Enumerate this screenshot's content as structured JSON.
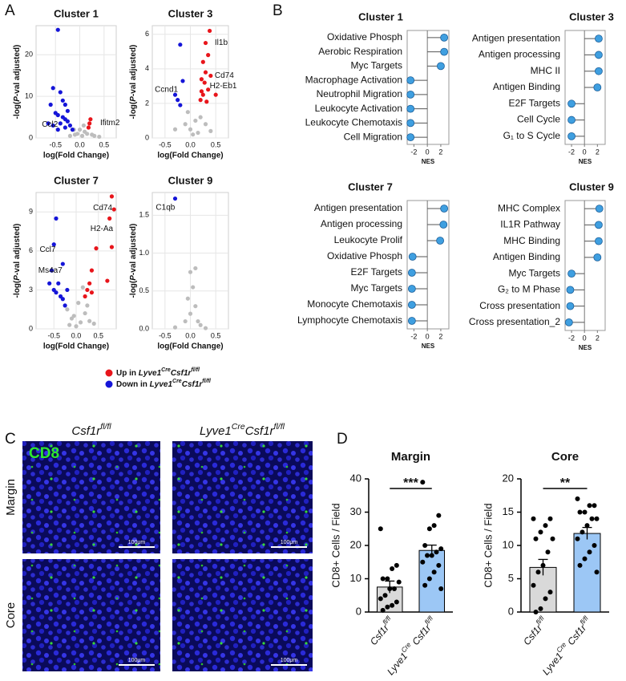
{
  "panels": [
    "A",
    "B",
    "C",
    "D"
  ],
  "legend": [
    {
      "color": "#e8151b",
      "parts": [
        {
          "text": "Up in "
        },
        {
          "text": "Lyve1",
          "italic": true
        },
        {
          "text": "Cre",
          "italic": true,
          "sup": true
        },
        {
          "text": "Csf1r",
          "italic": true
        },
        {
          "text": "fl/fl",
          "italic": true,
          "sup": true
        }
      ]
    },
    {
      "color": "#1515d8",
      "parts": [
        {
          "text": "Down in "
        },
        {
          "text": "Lyve1",
          "italic": true
        },
        {
          "text": "Cre",
          "italic": true,
          "sup": true
        },
        {
          "text": "Csf1r",
          "italic": true
        },
        {
          "text": "fl/fl",
          "italic": true,
          "sup": true
        }
      ]
    }
  ],
  "micrographs": {
    "columns": [
      [
        {
          "text": "Csf1r",
          "italic": true
        },
        {
          "text": "fl/fl",
          "italic": true,
          "sup": true
        }
      ],
      [
        {
          "text": "Lyve1",
          "italic": true
        },
        {
          "text": "Cre",
          "italic": true,
          "sup": true
        },
        {
          "text": "Csf1r",
          "italic": true
        },
        {
          "text": "fl/fl",
          "italic": true,
          "sup": true
        }
      ]
    ],
    "rows": [
      "Margin",
      "Core"
    ],
    "stain": "CD8",
    "scale_bars": [
      "100μm",
      "100μm",
      "100μm",
      "100μm"
    ]
  },
  "chart_data": [
    {
      "type": "scatter",
      "title": "Cluster 1",
      "xlabel": "log(Fold Change)",
      "ylabel": [
        {
          "text": "-log("
        },
        {
          "text": "P",
          "italic": true
        },
        {
          "text": "-val adjusted)"
        }
      ],
      "xlim": [
        -0.9,
        0.75
      ],
      "ylim": [
        0,
        27
      ],
      "xticks": [
        -0.5,
        {
          "value": 0,
          "label": "0.0"
        },
        0.5
      ],
      "yticks": [
        0,
        10,
        20
      ],
      "grid": true,
      "series": [
        {
          "color": "#bdbdbd",
          "x": [
            0.05,
            -0.05,
            0.1,
            -0.1,
            0.15,
            0.3,
            0.0,
            0.08,
            -0.12,
            0.25,
            0.4,
            -0.2
          ],
          "y": [
            0.5,
            1,
            1.5,
            0.8,
            1,
            0.5,
            2,
            3,
            2,
            0.8,
            0.3,
            0.5
          ]
        },
        {
          "color": "#1515d8",
          "x": [
            -0.45,
            -0.55,
            -0.4,
            -0.35,
            -0.6,
            -0.3,
            -0.5,
            -0.45,
            -0.35,
            -0.3,
            -0.25,
            -0.4,
            -0.55,
            -0.2,
            -0.3,
            -0.45,
            -0.65,
            -0.25,
            -0.15
          ],
          "y": [
            26,
            12,
            11,
            9,
            8,
            8,
            6,
            5.5,
            5,
            4.5,
            4,
            3.5,
            3,
            3,
            2.5,
            2,
            3.5,
            6.5,
            2
          ]
        },
        {
          "color": "#e8151b",
          "x": [
            0.2,
            0.18,
            0.22
          ],
          "y": [
            3.5,
            2.5,
            4.5
          ]
        }
      ],
      "annotations": [
        {
          "text": "Ccl2",
          "x": -0.78,
          "y": 3.2
        },
        {
          "text": "Ifitm2",
          "x": 0.42,
          "y": 3.6
        }
      ]
    },
    {
      "type": "scatter",
      "title": "Cluster 3",
      "xlabel": "log(Fold Change)",
      "ylabel": [
        {
          "text": "-log("
        },
        {
          "text": "P",
          "italic": true
        },
        {
          "text": "-val adjusted)"
        }
      ],
      "xlim": [
        -0.75,
        0.75
      ],
      "ylim": [
        0,
        6.5
      ],
      "xticks": [
        -0.5,
        {
          "value": 0,
          "label": "0.0"
        },
        0.5
      ],
      "yticks": [
        0,
        2,
        4,
        6
      ],
      "grid": true,
      "series": [
        {
          "color": "#bdbdbd",
          "x": [
            0.1,
            0.0,
            -0.1,
            0.2,
            0.05,
            -0.05,
            0.15,
            -0.3,
            0.3,
            0.4
          ],
          "y": [
            1,
            0.5,
            0.8,
            1.2,
            0.2,
            1.5,
            0.3,
            0.5,
            0.8,
            0.4
          ]
        },
        {
          "color": "#1515d8",
          "x": [
            -0.2,
            -0.15,
            -0.3,
            -0.25,
            -0.2
          ],
          "y": [
            5.4,
            3.3,
            2.5,
            2.2,
            1.9
          ]
        },
        {
          "color": "#e8151b",
          "x": [
            0.38,
            0.3,
            0.35,
            0.25,
            0.3,
            0.4,
            0.22,
            0.28,
            0.35,
            0.22,
            0.2,
            0.25,
            0.32,
            0.5
          ],
          "y": [
            6.2,
            5.5,
            4.8,
            4.4,
            3.8,
            3.6,
            3.4,
            3.2,
            2.8,
            2.7,
            2.2,
            2.5,
            2.1,
            2.5
          ]
        }
      ],
      "annotations": [
        {
          "text": "Il1b",
          "x": 0.48,
          "y": 5.5
        },
        {
          "text": "Cd74",
          "x": 0.48,
          "y": 3.6
        },
        {
          "text": "H2-Eb1",
          "x": 0.38,
          "y": 3.0
        },
        {
          "text": "Ccnd1",
          "x": -0.7,
          "y": 2.8
        }
      ]
    },
    {
      "type": "scatter",
      "title": "Cluster 7",
      "xlabel": "log(Fold Change)",
      "ylabel": [
        {
          "text": "-log("
        },
        {
          "text": "P",
          "italic": true
        },
        {
          "text": "-val adjusted)"
        }
      ],
      "xlim": [
        -0.9,
        0.9
      ],
      "ylim": [
        0,
        10.5
      ],
      "xticks": [
        -0.5,
        {
          "value": 0,
          "label": "0.0"
        },
        0.5
      ],
      "yticks": [
        0,
        3,
        6,
        9
      ],
      "grid": true,
      "series": [
        {
          "color": "#bdbdbd",
          "x": [
            0.0,
            0.1,
            -0.1,
            0.2,
            -0.2,
            0.05,
            -0.05,
            0.3,
            0.15,
            -0.15,
            0.4,
            0.25
          ],
          "y": [
            0.2,
            0.5,
            0.8,
            1.2,
            1.5,
            2,
            1,
            0.6,
            3.2,
            0.3,
            0.4,
            1.8
          ]
        },
        {
          "color": "#1515d8",
          "x": [
            -0.45,
            -0.5,
            -0.3,
            -0.55,
            -0.6,
            -0.5,
            -0.45,
            -0.35,
            -0.4,
            -0.3,
            -0.25,
            -0.2
          ],
          "y": [
            8.5,
            6.5,
            5,
            4.5,
            3.5,
            3,
            2.8,
            2.5,
            3.5,
            2.3,
            1.8,
            3
          ]
        },
        {
          "color": "#e8151b",
          "x": [
            0.8,
            0.85,
            0.75,
            0.8,
            0.45,
            0.7,
            0.35,
            0.3,
            0.25,
            0.35,
            0.2
          ],
          "y": [
            10.2,
            9.2,
            8.5,
            6.3,
            6.2,
            3.7,
            4.5,
            3.5,
            3,
            2.8,
            2.5
          ]
        }
      ],
      "annotations": [
        {
          "text": "Cd74",
          "x": 0.38,
          "y": 9.3
        },
        {
          "text": "H2-Aa",
          "x": 0.32,
          "y": 7.7
        },
        {
          "text": "Ccl7",
          "x": -0.82,
          "y": 6.1
        },
        {
          "text": "Ms4a7",
          "x": -0.85,
          "y": 4.5
        }
      ]
    },
    {
      "type": "scatter",
      "title": "Cluster 9",
      "xlabel": "log(Fold Change)",
      "ylabel": [
        {
          "text": "-log("
        },
        {
          "text": "P",
          "italic": true
        },
        {
          "text": "-val adjusted)"
        }
      ],
      "xlim": [
        -0.75,
        0.75
      ],
      "ylim": [
        0,
        1.8
      ],
      "xticks": [
        -0.5,
        {
          "value": 0,
          "label": "0.0"
        },
        0.5
      ],
      "yticks": [
        {
          "value": 0,
          "label": "0.0"
        },
        0.5,
        {
          "value": 1,
          "label": "1.0"
        },
        1.5
      ],
      "grid": true,
      "series": [
        {
          "color": "#bdbdbd",
          "x": [
            0.1,
            0.0,
            0.05,
            -0.05,
            0.1,
            0.0,
            -0.1,
            0.2,
            -0.3,
            0.3,
            0.15
          ],
          "y": [
            0.8,
            0.75,
            0.55,
            0.4,
            0.3,
            0.2,
            0.1,
            0.05,
            0.02,
            0.01,
            0.1
          ]
        },
        {
          "color": "#1515d8",
          "x": [
            -0.3
          ],
          "y": [
            1.72
          ]
        }
      ],
      "annotations": [
        {
          "text": "C1qb",
          "x": -0.68,
          "y": 1.6
        }
      ]
    },
    {
      "type": "lollipop",
      "title": "Cluster 1",
      "xlabel": "NES",
      "color": "#3f9fe0",
      "categories": [
        "Oxidative Phosph",
        "Aerobic Respiration",
        "Myc Targets",
        "Macrophage Activation",
        "Neutrophil Migration",
        "Leukocyte Activation",
        "Leukocyte Chemotaxis",
        "Cell Migration"
      ],
      "values": [
        2.5,
        2.5,
        2.0,
        -2.5,
        -2.5,
        -2.5,
        -2.5,
        -2.5
      ],
      "xlim": [
        -3,
        3.2
      ],
      "xticks": [
        -2,
        0,
        2
      ]
    },
    {
      "type": "lollipop",
      "title": "Cluster 3",
      "xlabel": "NES",
      "color": "#3f9fe0",
      "categories": [
        "Antigen presentation",
        "Antigen processing",
        "MHC II",
        "Antigen Binding",
        "E2F Targets",
        "Cell Cycle",
        "G₁ to S Cycle"
      ],
      "values": [
        2.2,
        2.2,
        2.2,
        2.0,
        -2.0,
        -2.0,
        -2.0
      ],
      "xlim": [
        -3,
        3.2
      ],
      "xticks": [
        -2,
        0,
        2
      ]
    },
    {
      "type": "lollipop",
      "title": "Cluster 7",
      "xlabel": "NES",
      "color": "#3f9fe0",
      "categories": [
        "Antigen presentation",
        "Antigen processing",
        "Leukocyte Prolif",
        "Oxidative Phosph",
        "E2F Targets",
        "Myc Targets",
        "Monocyte Chemotaxis",
        "Lymphocyte Chemotaxis"
      ],
      "values": [
        2.5,
        2.4,
        1.9,
        -2.2,
        -2.3,
        -2.3,
        -2.3,
        -2.3
      ],
      "xlim": [
        -3,
        3.2
      ],
      "xticks": [
        -2,
        0,
        2
      ]
    },
    {
      "type": "lollipop",
      "title": "Cluster 9",
      "xlabel": "NES",
      "color": "#3f9fe0",
      "categories": [
        "MHC Complex",
        "IL1R Pathway",
        "MHC Binding",
        "Antigen Binding",
        "Myc Targets",
        "G₂ to M Phase",
        "Cross presentation",
        "Cross presentation_2"
      ],
      "values": [
        2.3,
        2.2,
        2.2,
        2.0,
        -2.0,
        -2.2,
        -2.2,
        -2.4
      ],
      "xlim": [
        -3,
        3.2
      ],
      "xticks": [
        -2,
        0,
        2
      ]
    },
    {
      "type": "bar",
      "title": "Margin",
      "ylabel": "CD8+ Cells / Field",
      "categories": [
        [
          {
            "text": "Csf1r",
            "italic": true
          },
          {
            "text": "fl/fl",
            "italic": true,
            "sup": true
          }
        ],
        [
          {
            "text": "Lyve1",
            "italic": true
          },
          {
            "text": "Cre",
            "italic": true,
            "sup": true
          },
          {
            "text": " Csf1r",
            "italic": true
          },
          {
            "text": "fl/fl",
            "italic": true,
            "sup": true
          }
        ]
      ],
      "values": [
        7.5,
        18.5
      ],
      "errors": [
        1.8,
        1.6
      ],
      "colors": [
        "#d9d9d9",
        "#9cc7f5"
      ],
      "points": [
        [
          25,
          14,
          13,
          10,
          10,
          9,
          7,
          7,
          5,
          4,
          3,
          2,
          1.5,
          0.5
        ],
        [
          39,
          29,
          26,
          25,
          20,
          19,
          18,
          17,
          17,
          15,
          14,
          12,
          10,
          8,
          7
        ]
      ],
      "ylim": [
        0,
        40
      ],
      "yticks": [
        0,
        10,
        20,
        30,
        40
      ],
      "significance": "***"
    },
    {
      "type": "bar",
      "title": "Core",
      "ylabel": "CD8+ Cells / Field",
      "categories": [
        [
          {
            "text": "Csf1r",
            "italic": true
          },
          {
            "text": "fl/fl",
            "italic": true,
            "sup": true
          }
        ],
        [
          {
            "text": "Lyve1",
            "italic": true
          },
          {
            "text": "Cre",
            "italic": true,
            "sup": true
          },
          {
            "text": " Csf1r",
            "italic": true
          },
          {
            "text": "fl/fl",
            "italic": true,
            "sup": true
          }
        ]
      ],
      "values": [
        6.7,
        11.8
      ],
      "errors": [
        1.2,
        0.9
      ],
      "colors": [
        "#d9d9d9",
        "#9cc7f5"
      ],
      "points": [
        [
          14,
          14,
          13,
          12,
          11,
          11,
          9,
          7,
          6,
          4,
          3,
          2,
          0.5,
          0
        ],
        [
          17,
          16,
          16,
          15,
          15,
          14,
          14,
          13,
          12,
          11,
          10,
          9,
          8,
          7,
          6
        ]
      ],
      "ylim": [
        0,
        20
      ],
      "yticks": [
        0,
        5,
        10,
        15,
        20
      ],
      "significance": "**"
    }
  ]
}
